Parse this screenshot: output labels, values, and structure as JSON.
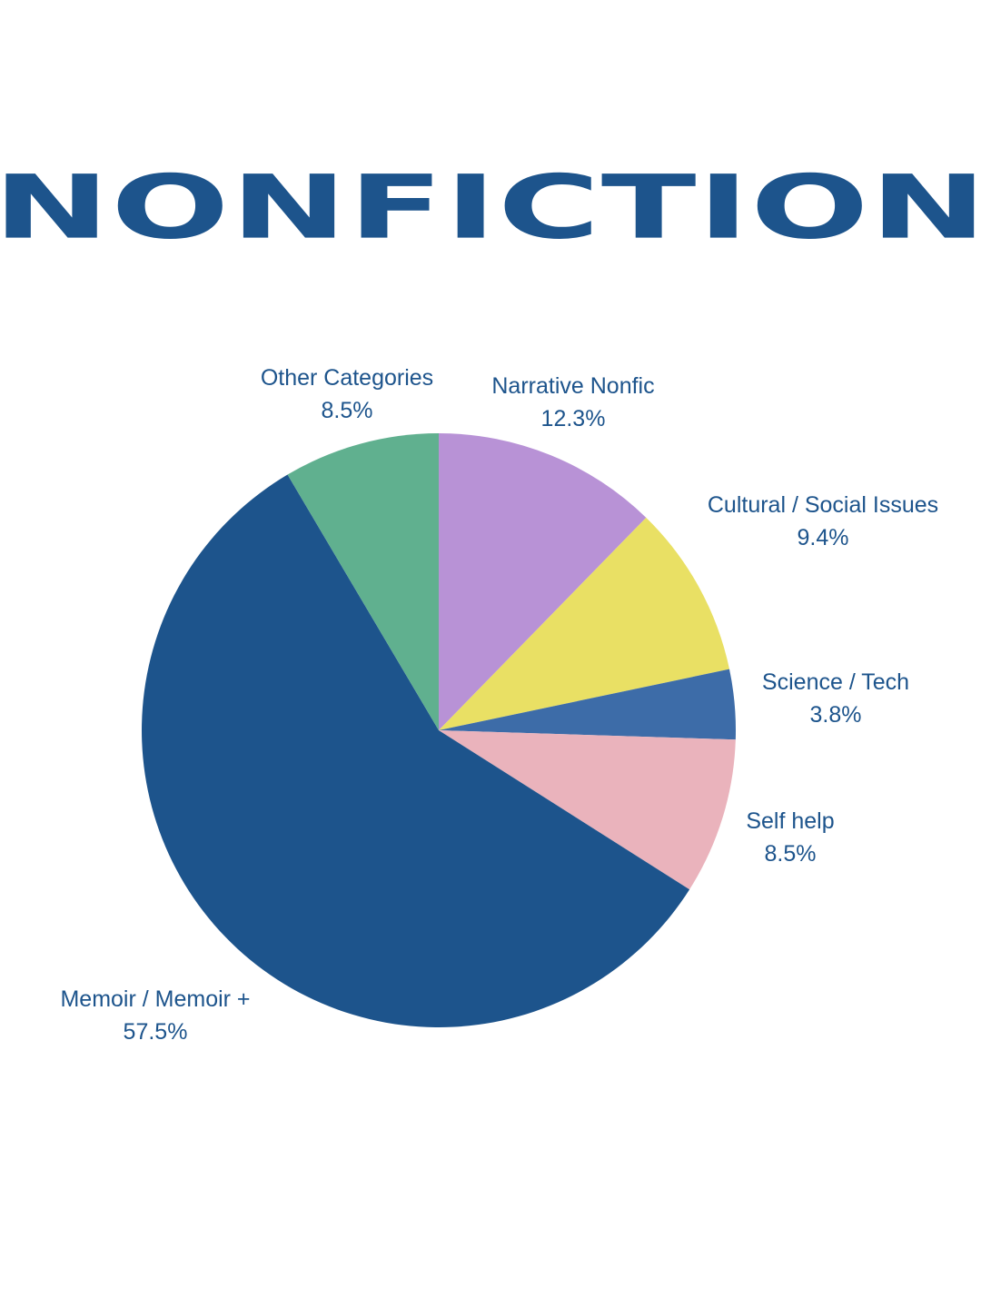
{
  "chart_data": {
    "type": "pie",
    "title": "NONFICTION",
    "slices": [
      {
        "name": "Narrative Nonfic",
        "value": 12.3,
        "label": "12.3%",
        "color": "#b892d6"
      },
      {
        "name": "Cultural / Social Issues",
        "value": 9.4,
        "label": "9.4%",
        "color": "#e9e064"
      },
      {
        "name": "Science / Tech",
        "value": 3.8,
        "label": "3.8%",
        "color": "#3d6ca8"
      },
      {
        "name": "Self help",
        "value": 8.5,
        "label": "8.5%",
        "color": "#eab3bc"
      },
      {
        "name": "Memoir / Memoir +",
        "value": 57.5,
        "label": "57.5%",
        "color": "#1d548c"
      },
      {
        "name": "Other Categories",
        "value": 8.5,
        "label": "8.5%",
        "color": "#60b08f"
      }
    ],
    "start_angle_deg": 0,
    "direction": "clockwise",
    "legend": "none"
  }
}
